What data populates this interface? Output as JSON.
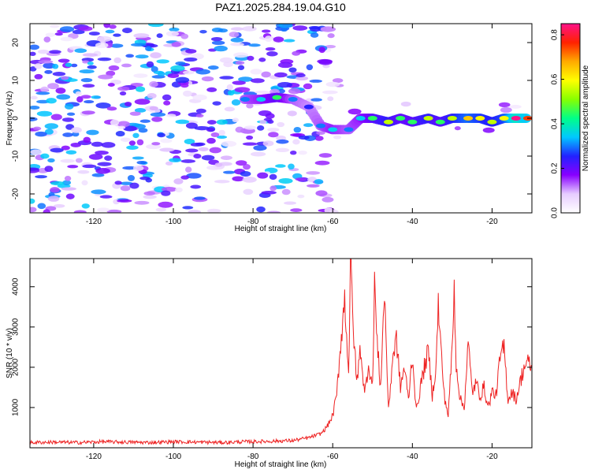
{
  "figure_title": "PAZ1.2025.284.19.04.G10",
  "chart_data": [
    {
      "type": "heatmap",
      "title": "PAZ1.2025.284.19.04.G10",
      "xlabel": "Height of straight line (km)",
      "ylabel": "Frequency (Hz)",
      "xlim": [
        -136,
        -10
      ],
      "ylim": [
        -25,
        25
      ],
      "x_ticks": [
        -120,
        -100,
        -80,
        -60,
        -40,
        -20
      ],
      "y_ticks": [
        -20,
        -10,
        0,
        10,
        20
      ],
      "colorbar": {
        "label": "Normalized spectral amplitude",
        "range": [
          0.0,
          0.85
        ],
        "ticks": [
          0.0,
          0.2,
          0.4,
          0.6,
          0.8
        ],
        "colormap": [
          "#ffffff",
          "#e6ccff",
          "#8800ff",
          "#2222ff",
          "#00c8ff",
          "#00ff88",
          "#88ff00",
          "#ffff00",
          "#ffaa00",
          "#ff2200",
          "#ff1188"
        ]
      },
      "signal_track": [
        {
          "x": -82,
          "freq": 5,
          "amp": 0.3
        },
        {
          "x": -78,
          "freq": 5,
          "amp": 0.35
        },
        {
          "x": -74,
          "freq": 5.5,
          "amp": 0.45
        },
        {
          "x": -70,
          "freq": 5,
          "amp": 0.3
        },
        {
          "x": -66,
          "freq": 3,
          "amp": 0.25
        },
        {
          "x": -63,
          "freq": -2,
          "amp": 0.3
        },
        {
          "x": -60,
          "freq": -3,
          "amp": 0.35
        },
        {
          "x": -56,
          "freq": -3,
          "amp": 0.3
        },
        {
          "x": -53,
          "freq": 0,
          "amp": 0.35
        },
        {
          "x": -50,
          "freq": 0,
          "amp": 0.45
        },
        {
          "x": -46,
          "freq": -1,
          "amp": 0.55
        },
        {
          "x": -43,
          "freq": 0,
          "amp": 0.45
        },
        {
          "x": -40,
          "freq": -1,
          "amp": 0.45
        },
        {
          "x": -36,
          "freq": 0,
          "amp": 0.55
        },
        {
          "x": -33,
          "freq": -1,
          "amp": 0.45
        },
        {
          "x": -30,
          "freq": 0,
          "amp": 0.55
        },
        {
          "x": -26,
          "freq": 0,
          "amp": 0.65
        },
        {
          "x": -23,
          "freq": 0,
          "amp": 0.6
        },
        {
          "x": -20,
          "freq": -1,
          "amp": 0.55
        },
        {
          "x": -17,
          "freq": 0,
          "amp": 0.6
        },
        {
          "x": -14,
          "freq": 0,
          "amp": 0.85
        },
        {
          "x": -11,
          "freq": 0,
          "amp": 0.75
        }
      ]
    },
    {
      "type": "line",
      "xlabel": "Height of straight line (km)",
      "ylabel": "SNR (10 * v/v)",
      "xlim": [
        -136,
        -10
      ],
      "ylim": [
        0,
        4700
      ],
      "x_ticks": [
        -120,
        -100,
        -80,
        -60,
        -40,
        -20
      ],
      "y_ticks": [
        1000,
        2000,
        3000,
        4000
      ],
      "series": [
        {
          "name": "SNR",
          "color": "#ee2222",
          "x": [
            -136,
            -130,
            -124,
            -118,
            -112,
            -106,
            -100,
            -94,
            -88,
            -82,
            -76,
            -70,
            -66,
            -63,
            -62,
            -61,
            -60,
            -59,
            -58,
            -57,
            -56,
            -55.5,
            -55,
            -54,
            -53,
            -52,
            -51,
            -50,
            -49.5,
            -49,
            -48,
            -47,
            -46,
            -45,
            -44,
            -43,
            -42,
            -41,
            -40,
            -39,
            -38,
            -37,
            -36,
            -35,
            -34,
            -33.5,
            -33,
            -32,
            -31,
            -30,
            -29.5,
            -29,
            -28,
            -27,
            -26,
            -25,
            -24,
            -23,
            -22,
            -21,
            -20,
            -19,
            -18,
            -17,
            -16,
            -15,
            -14,
            -13,
            -12,
            -11,
            -10
          ],
          "values": [
            130,
            140,
            130,
            150,
            140,
            130,
            150,
            140,
            130,
            150,
            160,
            180,
            250,
            350,
            450,
            600,
            800,
            1300,
            2600,
            3700,
            1900,
            4700,
            3300,
            1600,
            2500,
            1300,
            2100,
            1500,
            4300,
            2800,
            1500,
            3900,
            900,
            2200,
            2700,
            1500,
            2000,
            1200,
            2300,
            900,
            1500,
            2000,
            2400,
            1300,
            2100,
            3600,
            2700,
            1300,
            800,
            2500,
            3900,
            2100,
            1200,
            1000,
            2600,
            1400,
            1600,
            1300,
            1500,
            1000,
            1400,
            1300,
            2200,
            2500,
            1200,
            1400,
            1200,
            1600,
            2000,
            2100,
            2000
          ]
        }
      ]
    }
  ]
}
